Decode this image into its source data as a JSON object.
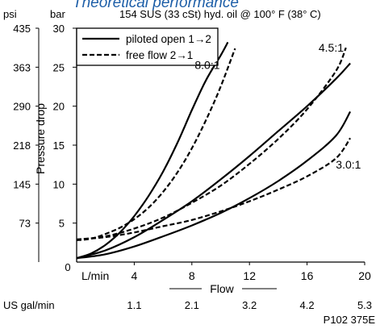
{
  "chart_data": {
    "type": "line",
    "title": "Theoretical performance",
    "subtitle": "154 SUS (33 cSt) hyd. oil @ 100° F (38° C)",
    "xlabel": "Flow",
    "ylabel": "Pressure drop",
    "x_unit_primary": "L/min",
    "x_unit_secondary": "US gal/min",
    "y_unit_primary": "bar",
    "y_unit_secondary": "psi",
    "xlim": [
      0,
      20
    ],
    "ylim": [
      0,
      30
    ],
    "x_ticks": [
      4,
      8,
      12,
      16,
      20
    ],
    "x_tick_labels": [
      "4",
      "8",
      "12",
      "16",
      "20"
    ],
    "x_zero_label": "0",
    "x_secondary_ticks": [
      4,
      8,
      12,
      16,
      20
    ],
    "x_secondary_tick_labels": [
      "1.1",
      "2.1",
      "3.2",
      "4.2",
      "5.3"
    ],
    "y_ticks": [
      5,
      10,
      15,
      20,
      25,
      30
    ],
    "y_tick_labels": [
      "5",
      "10",
      "15",
      "20",
      "25",
      "30"
    ],
    "y_zero_label": "0",
    "y_secondary_ticks": [
      5,
      10,
      15,
      20,
      25,
      30
    ],
    "y_secondary_tick_labels": [
      "73",
      "145",
      "218",
      "290",
      "363",
      "435"
    ],
    "grid": false,
    "legend_position": "top-left",
    "legend": [
      {
        "label": "piloted open 1→2",
        "style": "solid"
      },
      {
        "label": "free flow 2→1",
        "style": "dashed"
      }
    ],
    "series": [
      {
        "group": "8.0:1",
        "style": "solid",
        "x": [
          0,
          1,
          2,
          3,
          4,
          5,
          6,
          7,
          8,
          9,
          10,
          10.5
        ],
        "y": [
          0.5,
          1.1,
          2.2,
          3.8,
          5.9,
          8.5,
          11.6,
          15.3,
          19.5,
          23.4,
          26.5,
          28.2
        ]
      },
      {
        "group": "8.0:1",
        "style": "dashed",
        "x": [
          0,
          1,
          2,
          3,
          4,
          5,
          6,
          7,
          8,
          9,
          10,
          11
        ],
        "y": [
          2.8,
          3.0,
          3.6,
          4.4,
          5.5,
          7.0,
          9.0,
          11.5,
          14.6,
          18.3,
          22.5,
          27.4
        ]
      },
      {
        "group": "4.5:1",
        "style": "solid",
        "x": [
          0,
          2,
          4,
          6,
          8,
          10,
          12,
          14,
          16,
          18,
          19
        ],
        "y": [
          0.5,
          1.5,
          3.2,
          5.4,
          7.8,
          10.6,
          13.6,
          16.8,
          20.0,
          23.5,
          25.5
        ]
      },
      {
        "group": "4.5:1",
        "style": "dashed",
        "x": [
          0,
          2,
          4,
          6,
          8,
          10,
          12,
          14,
          16,
          18,
          18.7
        ],
        "y": [
          2.9,
          3.3,
          4.3,
          5.7,
          7.6,
          9.8,
          12.6,
          15.8,
          19.6,
          24.5,
          27.5
        ]
      },
      {
        "group": "3.0:1",
        "style": "solid",
        "x": [
          0,
          2,
          4,
          6,
          8,
          10,
          12,
          14,
          16,
          18,
          19
        ],
        "y": [
          0.5,
          1.0,
          2.0,
          3.3,
          4.7,
          6.3,
          8.2,
          10.4,
          13.0,
          16.2,
          19.3
        ]
      },
      {
        "group": "3.0:1",
        "style": "dashed",
        "x": [
          0,
          2,
          4,
          6,
          8,
          10,
          12,
          14,
          16,
          18,
          19
        ],
        "y": [
          2.9,
          3.2,
          3.8,
          4.6,
          5.4,
          6.5,
          7.8,
          9.3,
          11.0,
          13.3,
          15.9
        ]
      }
    ],
    "annotations": [
      {
        "text": "8.0:1",
        "x": 8.2,
        "y": 24.8
      },
      {
        "text": "4.5:1",
        "x": 16.8,
        "y": 27.0
      },
      {
        "text": "3.0:1",
        "x": 18.0,
        "y": 12.0
      }
    ]
  },
  "figure_code": "P102 375E"
}
